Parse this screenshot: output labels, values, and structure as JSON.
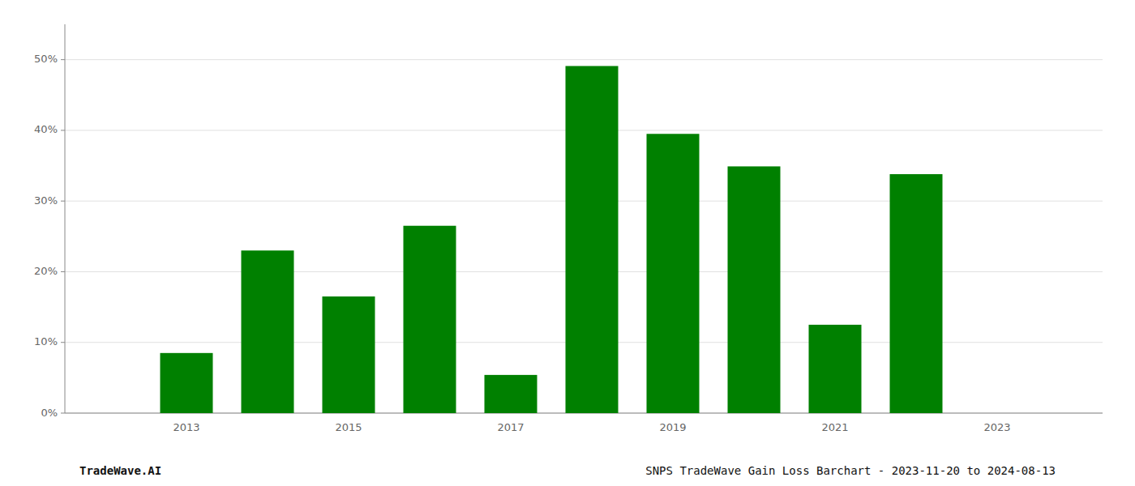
{
  "chart_data": {
    "type": "bar",
    "x": [
      2013,
      2014,
      2015,
      2016,
      2017,
      2018,
      2019,
      2020,
      2021,
      2022,
      2023
    ],
    "values": [
      0.085,
      0.23,
      0.165,
      0.265,
      0.054,
      0.491,
      0.395,
      0.349,
      0.125,
      0.338,
      0.0
    ],
    "color": "#008000",
    "xlim": [
      2011.5,
      2024.3
    ],
    "xticks": [
      2013,
      2015,
      2017,
      2019,
      2021,
      2023
    ],
    "ylim": [
      0,
      0.55
    ],
    "yticks": [
      {
        "value": 0.0,
        "label": "0%"
      },
      {
        "value": 0.1,
        "label": "10%"
      },
      {
        "value": 0.2,
        "label": "20%"
      },
      {
        "value": 0.3,
        "label": "30%"
      },
      {
        "value": 0.4,
        "label": "40%"
      },
      {
        "value": 0.5,
        "label": "50%"
      }
    ],
    "grid": true,
    "annotations": [
      "TradeWave.AI",
      "SNPS TradeWave Gain Loss Barchart - 2023-11-20 to 2024-08-13"
    ]
  }
}
